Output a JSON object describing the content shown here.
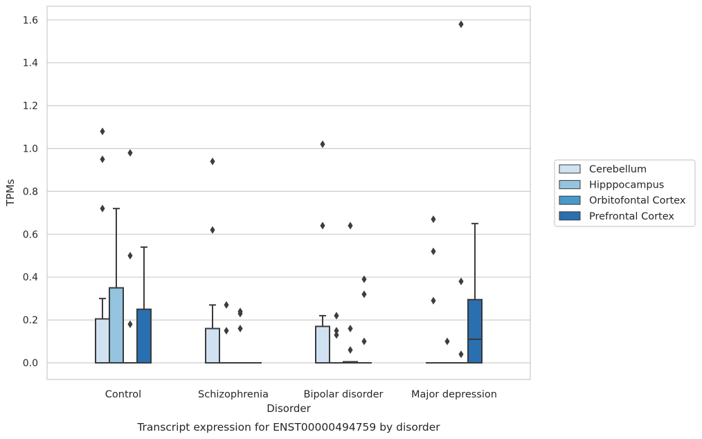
{
  "chart_data": {
    "type": "box",
    "title": "",
    "caption": "Transcript expression for ENST00000494759 by disorder",
    "xlabel": "Disorder",
    "ylabel": "TPMs",
    "ylim": [
      -0.08,
      1.66
    ],
    "yticks": [
      0.0,
      0.2,
      0.4,
      0.6,
      0.8,
      1.0,
      1.2,
      1.4,
      1.6
    ],
    "ytick_labels": [
      "0.0",
      "0.2",
      "0.4",
      "0.6",
      "0.8",
      "1.0",
      "1.2",
      "1.4",
      "1.6"
    ],
    "grid": "horizontal",
    "legend_position": "right",
    "categories": [
      "Control",
      "Schizophrenia",
      "Bipolar disorder",
      "Major depression"
    ],
    "series": [
      {
        "name": "Cerebellum",
        "color": "#d0e1f2",
        "boxes": [
          {
            "whisker_low": 0.0,
            "q1": 0.0,
            "median": 0.0,
            "q3": 0.205,
            "whisker_high": 0.3,
            "outliers": [
              0.72,
              0.95,
              1.08
            ]
          },
          {
            "whisker_low": 0.0,
            "q1": 0.0,
            "median": 0.0,
            "q3": 0.16,
            "whisker_high": 0.27,
            "outliers": [
              0.62,
              0.94
            ]
          },
          {
            "whisker_low": 0.0,
            "q1": 0.0,
            "median": 0.0,
            "q3": 0.17,
            "whisker_high": 0.22,
            "outliers": [
              0.64,
              1.02
            ]
          },
          {
            "whisker_low": 0.0,
            "q1": 0.0,
            "median": 0.0,
            "q3": 0.0,
            "whisker_high": 0.0,
            "outliers": [
              0.29,
              0.52,
              0.67
            ]
          }
        ]
      },
      {
        "name": "Hipppocampus",
        "color": "#94c4df",
        "boxes": [
          {
            "whisker_low": 0.0,
            "q1": 0.0,
            "median": 0.0,
            "q3": 0.35,
            "whisker_high": 0.72,
            "outliers": []
          },
          {
            "whisker_low": 0.0,
            "q1": 0.0,
            "median": 0.0,
            "q3": 0.0,
            "whisker_high": 0.0,
            "outliers": [
              0.15,
              0.27
            ]
          },
          {
            "whisker_low": 0.0,
            "q1": 0.0,
            "median": 0.0,
            "q3": 0.0,
            "whisker_high": 0.0,
            "outliers": [
              0.13,
              0.15,
              0.22
            ]
          },
          {
            "whisker_low": 0.0,
            "q1": 0.0,
            "median": 0.0,
            "q3": 0.0,
            "whisker_high": 0.0,
            "outliers": [
              0.1
            ]
          }
        ]
      },
      {
        "name": "Orbitofontal Cortex",
        "color": "#4a98c9",
        "boxes": [
          {
            "whisker_low": 0.0,
            "q1": 0.0,
            "median": 0.0,
            "q3": 0.0,
            "whisker_high": 0.0,
            "outliers": [
              0.18,
              0.5,
              0.98
            ]
          },
          {
            "whisker_low": 0.0,
            "q1": 0.0,
            "median": 0.0,
            "q3": 0.0,
            "whisker_high": 0.0,
            "outliers": [
              0.16,
              0.23,
              0.24
            ]
          },
          {
            "whisker_low": 0.0,
            "q1": 0.0,
            "median": 0.0,
            "q3": 0.005,
            "whisker_high": 0.005,
            "outliers": [
              0.06,
              0.16,
              0.64
            ]
          },
          {
            "whisker_low": 0.0,
            "q1": 0.0,
            "median": 0.0,
            "q3": 0.0,
            "whisker_high": 0.0,
            "outliers": [
              0.04,
              0.38,
              1.58
            ]
          }
        ]
      },
      {
        "name": "Prefrontal Cortex",
        "color": "#2a6fb0",
        "boxes": [
          {
            "whisker_low": 0.0,
            "q1": 0.0,
            "median": 0.0,
            "q3": 0.25,
            "whisker_high": 0.54,
            "outliers": []
          },
          {
            "whisker_low": 0.0,
            "q1": 0.0,
            "median": 0.0,
            "q3": 0.0,
            "whisker_high": 0.0,
            "outliers": []
          },
          {
            "whisker_low": 0.0,
            "q1": 0.0,
            "median": 0.0,
            "q3": 0.0,
            "whisker_high": 0.0,
            "outliers": [
              0.1,
              0.32,
              0.39
            ]
          },
          {
            "whisker_low": 0.0,
            "q1": 0.0,
            "median": 0.11,
            "q3": 0.295,
            "whisker_high": 0.65,
            "outliers": []
          }
        ]
      }
    ]
  }
}
